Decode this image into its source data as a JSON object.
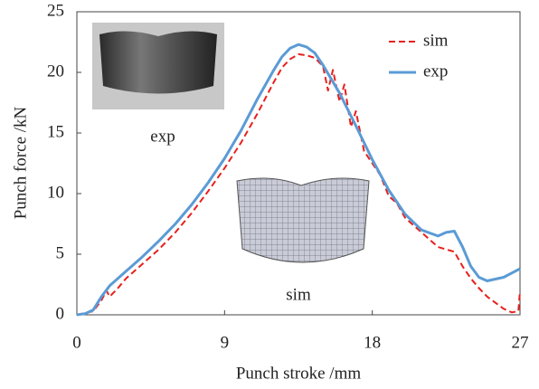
{
  "chart_data": {
    "type": "line",
    "xlabel": "Punch stroke /mm",
    "ylabel": "Punch force /kN",
    "xlim": [
      0,
      27
    ],
    "xticks": [
      0,
      9,
      18,
      27
    ],
    "ylim": [
      0,
      25
    ],
    "yticks": [
      0,
      5,
      10,
      15,
      20,
      25
    ],
    "grid": false,
    "legend": "upper right",
    "annotations": [
      "exp",
      "sim"
    ],
    "series": [
      {
        "name": "sim",
        "color": "#e8201c",
        "dash": true,
        "x": [
          0,
          1,
          1.5,
          1.8,
          2,
          2.5,
          3,
          4,
          5,
          6,
          7,
          8,
          9,
          10,
          11,
          12,
          12.5,
          13,
          13.5,
          14,
          14.5,
          15,
          15.3,
          15.6,
          16,
          16.3,
          16.7,
          17,
          17.5,
          18,
          18.5,
          19,
          19.5,
          20,
          21,
          22,
          23,
          23.5,
          24,
          24.5,
          25,
          26,
          26.5,
          26.9,
          27
        ],
        "values": [
          0,
          0.3,
          1.2,
          2,
          1.5,
          2.2,
          3,
          4.2,
          5.4,
          6.8,
          8.4,
          10.2,
          12.1,
          14.2,
          16.6,
          19.2,
          20.4,
          21.1,
          21.5,
          21.4,
          21.2,
          20.5,
          18.5,
          20.2,
          17.6,
          19,
          15.5,
          16.8,
          13.5,
          12.5,
          11.5,
          9.8,
          9.2,
          8,
          6.8,
          5.6,
          5.2,
          4,
          3,
          2.2,
          1.5,
          0.5,
          0.2,
          0.3,
          2
        ]
      },
      {
        "name": "exp",
        "color": "#5b9bd5",
        "dash": false,
        "x": [
          0,
          0.5,
          1,
          1.5,
          2,
          3,
          4,
          5,
          6,
          7,
          8,
          9,
          10,
          11,
          12,
          12.5,
          13,
          13.5,
          14,
          14.5,
          15,
          16,
          17,
          18,
          19,
          20,
          21,
          22,
          22.5,
          23,
          23.5,
          24,
          24.5,
          25,
          26,
          27
        ],
        "values": [
          0,
          0.1,
          0.4,
          1.5,
          2.4,
          3.6,
          4.8,
          6.1,
          7.5,
          9.1,
          10.9,
          12.9,
          15.2,
          17.8,
          20.2,
          21.3,
          22,
          22.3,
          22.1,
          21.6,
          20.6,
          18.3,
          15.6,
          12.8,
          10.3,
          8.3,
          7,
          6.5,
          6.8,
          6.9,
          5.6,
          4,
          3.1,
          2.8,
          3.1,
          3.8
        ]
      }
    ]
  }
}
